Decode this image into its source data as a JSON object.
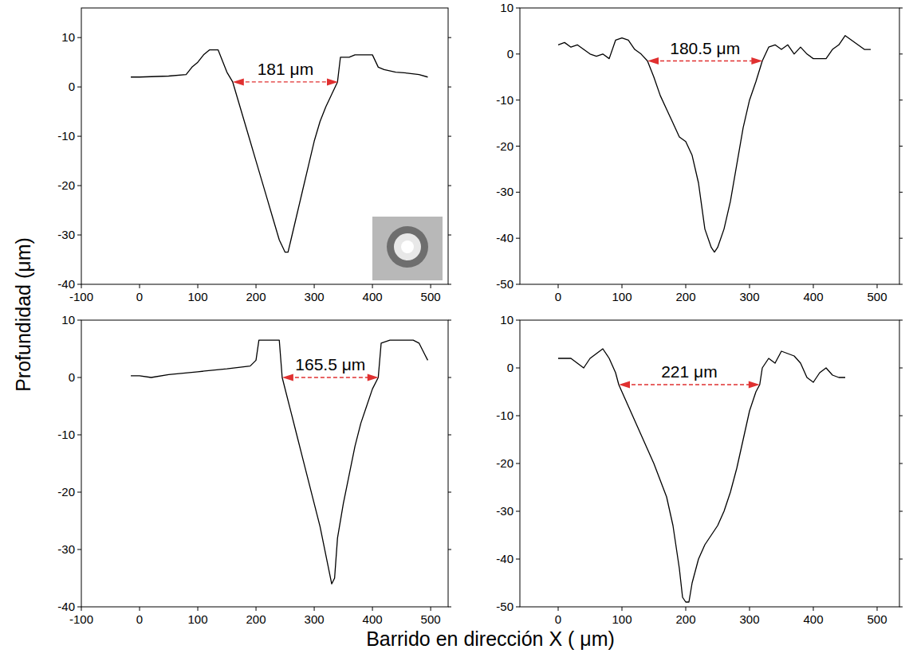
{
  "xlabel": "Barrido en dirección X ( μm)",
  "ylabel": "Profundidad (μm)",
  "chart_data": [
    {
      "type": "line",
      "x": [
        -15,
        0,
        50,
        80,
        90,
        100,
        110,
        120,
        130,
        135,
        140,
        150,
        160,
        170,
        180,
        190,
        200,
        210,
        220,
        230,
        240,
        250,
        255,
        260,
        270,
        280,
        290,
        300,
        310,
        320,
        330,
        340,
        345,
        360,
        370,
        400,
        410,
        420,
        440,
        460,
        480,
        495
      ],
      "series": [
        {
          "color": "#000000",
          "values": [
            2,
            2,
            2.2,
            2.5,
            4,
            5,
            6.5,
            7.5,
            7.5,
            7.5,
            6,
            3,
            1,
            -3,
            -7,
            -11,
            -15,
            -19,
            -23,
            -27,
            -31,
            -33.5,
            -33.5,
            -31,
            -26,
            -21,
            -16,
            -11,
            -7,
            -4,
            -1.5,
            1,
            6,
            6,
            6.5,
            6.5,
            4,
            3.5,
            3,
            2.8,
            2.5,
            2
          ]
        }
      ],
      "xlim": [
        -100,
        530
      ],
      "ylim": [
        -40,
        16
      ],
      "xticks": [
        -100,
        0,
        100,
        200,
        300,
        400,
        500
      ],
      "yticks": [
        -40,
        -30,
        -20,
        -10,
        0,
        10
      ],
      "annotation": {
        "text": "181 μm",
        "x_start": 160,
        "x_end": 341,
        "y": 1,
        "color": "#e03030"
      }
    },
    {
      "type": "line",
      "x": [
        0,
        10,
        20,
        30,
        40,
        50,
        60,
        70,
        80,
        90,
        100,
        110,
        120,
        130,
        140,
        150,
        160,
        170,
        180,
        190,
        200,
        210,
        220,
        230,
        240,
        245,
        250,
        260,
        270,
        280,
        290,
        300,
        310,
        320,
        330,
        340,
        350,
        360,
        370,
        380,
        390,
        400,
        410,
        420,
        430,
        440,
        450,
        460,
        470,
        480,
        490
      ],
      "series": [
        {
          "color": "#000000",
          "values": [
            2,
            2.5,
            1.5,
            2,
            1,
            0,
            -0.5,
            0,
            -1,
            3,
            3.5,
            3,
            1,
            0,
            -1.5,
            -5,
            -9,
            -12,
            -15,
            -18,
            -19,
            -22,
            -28,
            -38,
            -42,
            -43,
            -42,
            -38,
            -32,
            -24,
            -16,
            -10,
            -6,
            -1.5,
            1.5,
            2,
            1,
            2,
            0,
            1.5,
            0,
            -1,
            -1,
            -1,
            1,
            2,
            4,
            3,
            2,
            1,
            1
          ]
        }
      ],
      "xlim": [
        -60,
        535
      ],
      "ylim": [
        -50,
        10
      ],
      "xticks": [
        0,
        100,
        200,
        300,
        400,
        500
      ],
      "yticks": [
        -50,
        -40,
        -30,
        -20,
        -10,
        0,
        10
      ],
      "annotation": {
        "text": "180.5 μm",
        "x_start": 140,
        "x_end": 320.5,
        "y": -1.5,
        "color": "#e03030"
      }
    },
    {
      "type": "line",
      "x": [
        -15,
        0,
        20,
        50,
        100,
        150,
        190,
        200,
        205,
        240,
        245,
        260,
        270,
        280,
        290,
        300,
        310,
        320,
        330,
        335,
        340,
        350,
        360,
        370,
        380,
        390,
        400,
        410,
        415,
        430,
        470,
        480,
        490,
        495
      ],
      "series": [
        {
          "color": "#000000",
          "values": [
            0.3,
            0.3,
            0,
            0.5,
            1,
            1.5,
            2,
            3,
            6.5,
            6.5,
            0,
            -6,
            -10,
            -14,
            -18,
            -22,
            -26,
            -31,
            -36,
            -35,
            -28,
            -22,
            -17,
            -12,
            -8,
            -5,
            -2,
            0,
            6,
            6.5,
            6.5,
            6,
            4,
            3
          ]
        }
      ],
      "xlim": [
        -100,
        530
      ],
      "ylim": [
        -40,
        10
      ],
      "xticks": [
        -100,
        0,
        100,
        200,
        300,
        400,
        500
      ],
      "yticks": [
        -40,
        -30,
        -20,
        -10,
        0,
        10
      ],
      "annotation": {
        "text": "165.5 μm",
        "x_start": 245,
        "x_end": 410.5,
        "y": 0,
        "color": "#e03030"
      }
    },
    {
      "type": "line",
      "x": [
        0,
        20,
        30,
        40,
        50,
        60,
        70,
        80,
        90,
        95,
        110,
        130,
        150,
        170,
        180,
        190,
        195,
        200,
        205,
        210,
        220,
        230,
        240,
        250,
        260,
        270,
        280,
        290,
        300,
        310,
        316,
        320,
        330,
        340,
        350,
        360,
        370,
        380,
        390,
        400,
        410,
        420,
        430,
        440,
        450
      ],
      "series": [
        {
          "color": "#000000",
          "values": [
            2,
            2,
            1,
            0,
            2,
            3,
            4,
            2,
            -1,
            -3.5,
            -8,
            -14,
            -20,
            -27,
            -33,
            -42,
            -48,
            -49,
            -49,
            -45,
            -40,
            -37,
            -35,
            -33,
            -30,
            -26,
            -21,
            -15,
            -9,
            -5,
            -3.5,
            0,
            2,
            1,
            3.5,
            3,
            2.5,
            1,
            -2,
            -3,
            -1,
            0,
            -1.5,
            -2,
            -2
          ]
        }
      ],
      "xlim": [
        -60,
        535
      ],
      "ylim": [
        -50,
        10
      ],
      "xticks": [
        0,
        100,
        200,
        300,
        400,
        500
      ],
      "yticks": [
        -50,
        -40,
        -30,
        -20,
        -10,
        0,
        10
      ],
      "annotation": {
        "text": "221 μm",
        "x_start": 95,
        "x_end": 316,
        "y": -3.5,
        "color": "#e03030"
      }
    }
  ]
}
